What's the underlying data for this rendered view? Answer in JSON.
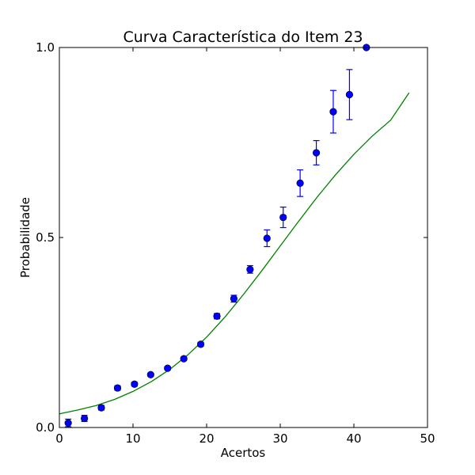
{
  "chart_data": {
    "type": "scatter",
    "title": "Curva Característica do Item 23",
    "xlabel": "Acertos",
    "ylabel": "Probabilidade",
    "xlim": [
      0,
      50
    ],
    "ylim": [
      0.0,
      1.0
    ],
    "xticks": [
      0,
      10,
      20,
      30,
      40,
      50
    ],
    "xtick_labels": [
      "0",
      "10",
      "20",
      "30",
      "40",
      "50"
    ],
    "yticks": [
      0.0,
      0.5,
      1.0
    ],
    "ytick_labels": [
      "0.0",
      "0.5",
      "1.0"
    ],
    "grid": false,
    "colors": {
      "points": "#0000ff",
      "errorbars": "#0000ff",
      "curve": "#008000"
    },
    "points": [
      {
        "x": 1.2,
        "y": 0.012,
        "err": 0.01
      },
      {
        "x": 3.4,
        "y": 0.024,
        "err": 0.008
      },
      {
        "x": 5.7,
        "y": 0.052,
        "err": 0.006
      },
      {
        "x": 7.9,
        "y": 0.104,
        "err": 0.006
      },
      {
        "x": 10.2,
        "y": 0.114,
        "err": 0.005
      },
      {
        "x": 12.4,
        "y": 0.139,
        "err": 0.004
      },
      {
        "x": 14.7,
        "y": 0.156,
        "err": 0.004
      },
      {
        "x": 16.9,
        "y": 0.181,
        "err": 0.004
      },
      {
        "x": 19.2,
        "y": 0.219,
        "err": 0.005
      },
      {
        "x": 21.4,
        "y": 0.293,
        "err": 0.007
      },
      {
        "x": 23.7,
        "y": 0.339,
        "err": 0.009
      },
      {
        "x": 25.9,
        "y": 0.416,
        "err": 0.01
      },
      {
        "x": 28.2,
        "y": 0.498,
        "err": 0.022
      },
      {
        "x": 30.4,
        "y": 0.553,
        "err": 0.027
      },
      {
        "x": 32.7,
        "y": 0.643,
        "err": 0.035
      },
      {
        "x": 34.9,
        "y": 0.723,
        "err": 0.032
      },
      {
        "x": 37.2,
        "y": 0.831,
        "err": 0.056
      },
      {
        "x": 39.4,
        "y": 0.876,
        "err": 0.066
      },
      {
        "x": 41.7,
        "y": 1.0,
        "err": 0.0
      }
    ],
    "curve": {
      "x": [
        0,
        2.5,
        5,
        7.5,
        10,
        12.5,
        15,
        17.5,
        20,
        22.5,
        25,
        27.5,
        30,
        32.5,
        35,
        37.5,
        40,
        42.5,
        45,
        47.5
      ],
      "y": [
        0.036,
        0.046,
        0.058,
        0.074,
        0.095,
        0.121,
        0.153,
        0.192,
        0.238,
        0.291,
        0.35,
        0.413,
        0.478,
        0.543,
        0.606,
        0.665,
        0.719,
        0.767,
        0.809,
        0.881
      ]
    }
  }
}
